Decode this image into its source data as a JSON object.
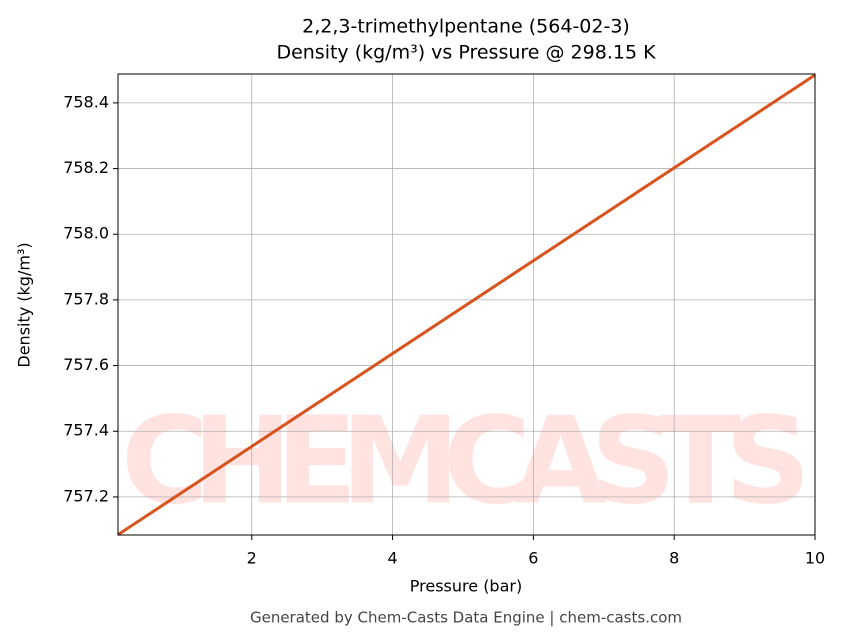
{
  "chart_data": {
    "type": "line",
    "title": "2,2,3-trimethylpentane (564-02-3)",
    "subtitle": "Density (kg/m³) vs Pressure @ 298.15 K",
    "x_label": "Pressure (bar)",
    "y_label": "Density (kg/m³)",
    "watermark": "CHEMCASTS",
    "footer": "Generated by Chem-Casts Data Engine | chem-casts.com",
    "x": [
      0.1,
      10
    ],
    "series": [
      {
        "name": "Density",
        "color": "#d9531e",
        "values": [
          757.085,
          758.485
        ]
      }
    ],
    "xlim": [
      0.1,
      10
    ],
    "ylim": [
      757.084,
      758.488
    ],
    "xticks": [
      2,
      4,
      6,
      8,
      10
    ],
    "yticks": [
      757.2,
      757.4,
      757.6,
      757.8,
      {
        "value": 758,
        "label": "758.0"
      },
      758.2,
      758.4
    ],
    "grid": true
  }
}
